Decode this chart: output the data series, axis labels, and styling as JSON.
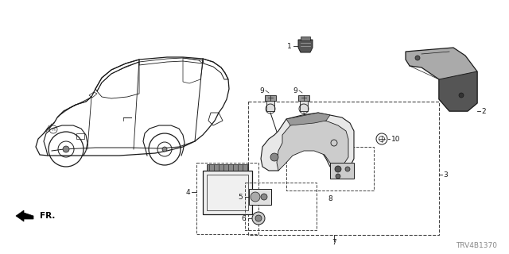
{
  "bg_color": "#ffffff",
  "diagram_code": "TRV4B1370",
  "text_color": "#1a1a1a",
  "line_color": "#1a1a1a",
  "dashed_color": "#444444",
  "gray_fill": "#888888",
  "dark_fill": "#333333",
  "mid_fill": "#999999"
}
